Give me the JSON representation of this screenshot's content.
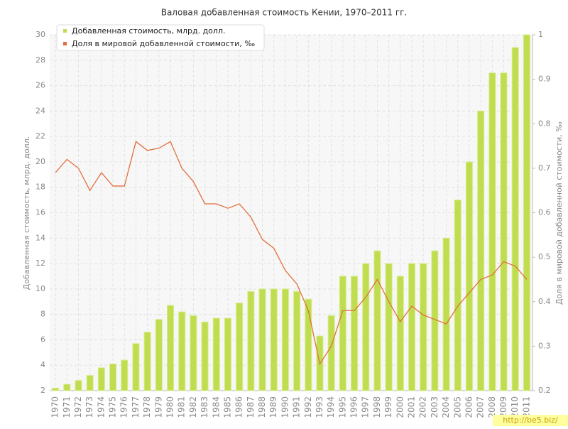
{
  "chart_data": {
    "type": "bar_line",
    "title": "Валовая добавленная стоимость Кении, 1970–2011 гг.",
    "y_label": "Добавленная стоимость, млрд. долл.",
    "y2_label": "Доля в мировой добавленной стоимости, ‰",
    "categories": [
      "1970",
      "1971",
      "1972",
      "1973",
      "1974",
      "1975",
      "1976",
      "1977",
      "1978",
      "1979",
      "1980",
      "1981",
      "1982",
      "1983",
      "1984",
      "1985",
      "1986",
      "1987",
      "1988",
      "1989",
      "1990",
      "1991",
      "1992",
      "1993",
      "1994",
      "1995",
      "1996",
      "1997",
      "1998",
      "1999",
      "2000",
      "2001",
      "2002",
      "2003",
      "2004",
      "2005",
      "2006",
      "2007",
      "2008",
      "2009",
      "2010",
      "2011"
    ],
    "series": [
      {
        "name": "Добавленная стоимость, млрд. долл.",
        "color": "#bfdd4f",
        "kind": "bar",
        "values": [
          2.2,
          2.5,
          2.8,
          3.2,
          3.8,
          4.1,
          4.4,
          5.7,
          6.6,
          7.6,
          8.7,
          8.2,
          7.9,
          7.4,
          7.7,
          7.7,
          8.9,
          9.8,
          10,
          10,
          10,
          9.8,
          9.2,
          6.3,
          7.9,
          11,
          11,
          12,
          13,
          12,
          11,
          12,
          12,
          13,
          14,
          17,
          20,
          24,
          27,
          27,
          29,
          30
        ]
      },
      {
        "name": "Доля в мировой добавленной стоимости, ‰",
        "color": "#e0703c",
        "kind": "line",
        "axis": "y2",
        "values": [
          0.69,
          0.72,
          0.7,
          0.65,
          0.69,
          0.66,
          0.66,
          0.76,
          0.74,
          0.745,
          0.76,
          0.7,
          0.67,
          0.62,
          0.62,
          0.61,
          0.62,
          0.59,
          0.54,
          0.52,
          0.47,
          0.44,
          0.38,
          0.26,
          0.3,
          0.38,
          0.38,
          0.41,
          0.45,
          0.4,
          0.355,
          0.39,
          0.37,
          0.36,
          0.35,
          0.39,
          0.42,
          0.45,
          0.46,
          0.49,
          0.48,
          0.45
        ]
      }
    ],
    "ylim": [
      2,
      30
    ],
    "yticks": [
      2,
      4,
      6,
      8,
      10,
      12,
      14,
      16,
      18,
      20,
      22,
      24,
      26,
      28,
      30
    ],
    "y2lim": [
      0.2,
      1
    ],
    "y2ticks": [
      0.2,
      0.3,
      0.4,
      0.5,
      0.6,
      0.7,
      0.8,
      0.9,
      1
    ],
    "grid": true,
    "legend": "top-left",
    "watermark": "http://be5.biz/"
  }
}
